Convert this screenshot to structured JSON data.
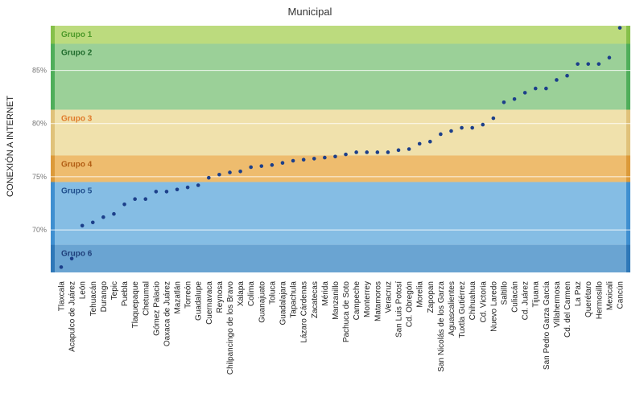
{
  "chart_data": {
    "type": "scatter",
    "title": "Municipal",
    "ylabel": "CONEXIÓN A INTERNET",
    "xlabel": "",
    "ylim": [
      66,
      89.2
    ],
    "yticks": [
      70,
      75,
      80,
      85
    ],
    "ytick_labels": [
      "70%",
      "75%",
      "80%",
      "85%"
    ],
    "grid": true,
    "marker_color": "#1c3f8a",
    "groups": [
      {
        "name": "Grupo 1",
        "range": [
          87.5,
          89.2
        ],
        "fill": "#bcdb7e",
        "stripe": "#86c04a",
        "label_color": "#4e9a2a"
      },
      {
        "name": "Grupo 2",
        "range": [
          81.3,
          87.5
        ],
        "fill": "#9bd098",
        "stripe": "#4fae5a",
        "label_color": "#1f6b2c"
      },
      {
        "name": "Grupo 3",
        "range": [
          77.0,
          81.3
        ],
        "fill": "#f0e1ac",
        "stripe": "#e0c27a",
        "label_color": "#e07a2a"
      },
      {
        "name": "Grupo 4",
        "range": [
          74.5,
          77.0
        ],
        "fill": "#eebc6e",
        "stripe": "#dc9a3a",
        "label_color": "#b25e14"
      },
      {
        "name": "Grupo 5",
        "range": [
          68.6,
          74.5
        ],
        "fill": "#85bde4",
        "stripe": "#3f8fd0",
        "label_color": "#1f4e8c"
      },
      {
        "name": "Grupo 6",
        "range": [
          66.0,
          68.6
        ],
        "fill": "#6aa4d2",
        "stripe": "#2f78b8",
        "label_color": "#1f3f7a"
      }
    ],
    "points": [
      {
        "x": "Tlaxcala",
        "y": 66.5,
        "group": "Grupo 6"
      },
      {
        "x": "Acapulco de Juárez",
        "y": 67.3,
        "group": "Grupo 6"
      },
      {
        "x": "León",
        "y": 70.4,
        "group": "Grupo 5"
      },
      {
        "x": "Tehuacán",
        "y": 70.7,
        "group": "Grupo 5"
      },
      {
        "x": "Durango",
        "y": 71.2,
        "group": "Grupo 5"
      },
      {
        "x": "Tepic",
        "y": 71.5,
        "group": "Grupo 5"
      },
      {
        "x": "Puebla",
        "y": 72.4,
        "group": "Grupo 5"
      },
      {
        "x": "Tlaquepaque",
        "y": 72.9,
        "group": "Grupo 5"
      },
      {
        "x": "Chetumal",
        "y": 72.9,
        "group": "Grupo 5"
      },
      {
        "x": "Gómez Palacio",
        "y": 73.6,
        "group": "Grupo 5"
      },
      {
        "x": "Oaxaca de Juárez",
        "y": 73.6,
        "group": "Grupo 5"
      },
      {
        "x": "Mazatlán",
        "y": 73.8,
        "group": "Grupo 5"
      },
      {
        "x": "Torreón",
        "y": 74.0,
        "group": "Grupo 5"
      },
      {
        "x": "Guadalupe",
        "y": 74.2,
        "group": "Grupo 5"
      },
      {
        "x": "Cuernavaca",
        "y": 74.9,
        "group": "Grupo 4"
      },
      {
        "x": "Reynosa",
        "y": 75.2,
        "group": "Grupo 4"
      },
      {
        "x": "Chilpancingo de los Bravo",
        "y": 75.4,
        "group": "Grupo 4"
      },
      {
        "x": "Xalapa",
        "y": 75.5,
        "group": "Grupo 4"
      },
      {
        "x": "Colima",
        "y": 75.9,
        "group": "Grupo 4"
      },
      {
        "x": "Guanajuato",
        "y": 76.0,
        "group": "Grupo 4"
      },
      {
        "x": "Toluca",
        "y": 76.1,
        "group": "Grupo 4"
      },
      {
        "x": "Guadalajara",
        "y": 76.3,
        "group": "Grupo 4"
      },
      {
        "x": "Tapachula",
        "y": 76.5,
        "group": "Grupo 4"
      },
      {
        "x": "Lázaro Cárdenas",
        "y": 76.6,
        "group": "Grupo 4"
      },
      {
        "x": "Zacatecas",
        "y": 76.7,
        "group": "Grupo 4"
      },
      {
        "x": "Mérida",
        "y": 76.8,
        "group": "Grupo 4"
      },
      {
        "x": "Manzanillo",
        "y": 76.9,
        "group": "Grupo 4"
      },
      {
        "x": "Pachuca de Soto",
        "y": 77.1,
        "group": "Grupo 3"
      },
      {
        "x": "Campeche",
        "y": 77.3,
        "group": "Grupo 3"
      },
      {
        "x": "Monterrey",
        "y": 77.3,
        "group": "Grupo 3"
      },
      {
        "x": "Matamoros",
        "y": 77.3,
        "group": "Grupo 3"
      },
      {
        "x": "Veracruz",
        "y": 77.3,
        "group": "Grupo 3"
      },
      {
        "x": "San Luis Potosí",
        "y": 77.5,
        "group": "Grupo 3"
      },
      {
        "x": "Cd. Obregón",
        "y": 77.6,
        "group": "Grupo 3"
      },
      {
        "x": "Morelia",
        "y": 78.1,
        "group": "Grupo 3"
      },
      {
        "x": "Zapopan",
        "y": 78.3,
        "group": "Grupo 3"
      },
      {
        "x": "San Nicolás de los Garza",
        "y": 79.0,
        "group": "Grupo 3"
      },
      {
        "x": "Aguascalientes",
        "y": 79.3,
        "group": "Grupo 3"
      },
      {
        "x": "Tuxtla Gutiérrez",
        "y": 79.6,
        "group": "Grupo 3"
      },
      {
        "x": "Chihuahua",
        "y": 79.6,
        "group": "Grupo 3"
      },
      {
        "x": "Cd. Victoria",
        "y": 79.9,
        "group": "Grupo 3"
      },
      {
        "x": "Nuevo Laredo",
        "y": 80.5,
        "group": "Grupo 3"
      },
      {
        "x": "Saltillo",
        "y": 82.0,
        "group": "Grupo 2"
      },
      {
        "x": "Culiacán",
        "y": 82.3,
        "group": "Grupo 2"
      },
      {
        "x": "Cd. Juárez",
        "y": 82.9,
        "group": "Grupo 2"
      },
      {
        "x": "Tijuana",
        "y": 83.3,
        "group": "Grupo 2"
      },
      {
        "x": "San Pedro Garza García",
        "y": 83.3,
        "group": "Grupo 2"
      },
      {
        "x": "Villahermosa",
        "y": 84.1,
        "group": "Grupo 2"
      },
      {
        "x": "Cd. del Carmen",
        "y": 84.5,
        "group": "Grupo 2"
      },
      {
        "x": "La Paz",
        "y": 85.6,
        "group": "Grupo 2"
      },
      {
        "x": "Querétaro",
        "y": 85.6,
        "group": "Grupo 2"
      },
      {
        "x": "Hermosillo",
        "y": 85.6,
        "group": "Grupo 2"
      },
      {
        "x": "Mexicali",
        "y": 86.2,
        "group": "Grupo 2"
      },
      {
        "x": "Cancún",
        "y": 89.0,
        "group": "Grupo 1"
      }
    ]
  }
}
